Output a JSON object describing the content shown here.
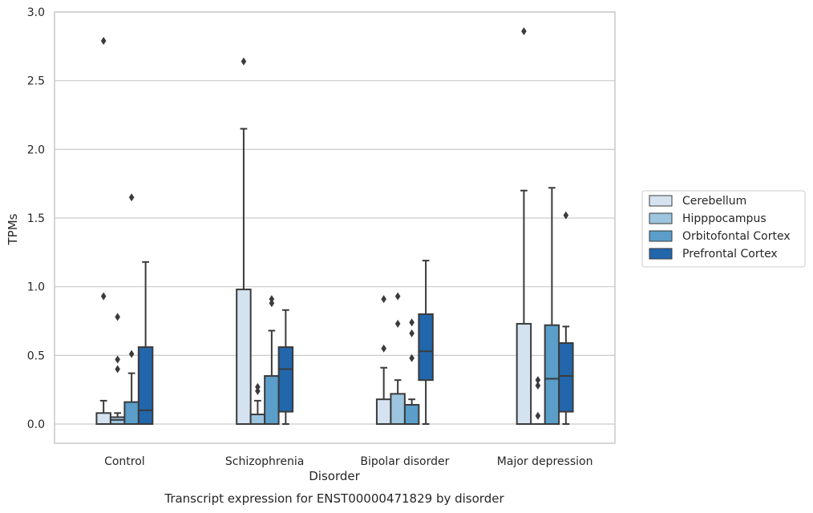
{
  "chart_data": {
    "type": "box",
    "caption": "Transcript expression for ENST00000471829 by disorder",
    "xlabel": "Disorder",
    "ylabel": "TPMs",
    "ylim": [
      -0.14,
      3.0
    ],
    "yticks": [
      0.0,
      0.5,
      1.0,
      1.5,
      2.0,
      2.5,
      3.0
    ],
    "ytick_labels": [
      "0.0",
      "0.5",
      "1.0",
      "1.5",
      "2.0",
      "2.5",
      "3.0"
    ],
    "grid": "horizontal",
    "legend_position": "right",
    "categories": [
      "Control",
      "Schizophrenia",
      "Bipolar disorder",
      "Major depression"
    ],
    "series": [
      {
        "name": "Cerebellum",
        "color": "#d5e3f1",
        "boxes": [
          {
            "q1": 0.0,
            "median": 0.0,
            "q3": 0.08,
            "whislo": 0.0,
            "whishi": 0.17,
            "fliers": [
              0.93,
              2.79
            ]
          },
          {
            "q1": 0.0,
            "median": 0.0,
            "q3": 0.98,
            "whislo": 0.0,
            "whishi": 2.15,
            "fliers": [
              2.64
            ]
          },
          {
            "q1": 0.0,
            "median": 0.0,
            "q3": 0.18,
            "whislo": 0.0,
            "whishi": 0.41,
            "fliers": [
              0.55,
              0.91
            ]
          },
          {
            "q1": 0.0,
            "median": 0.0,
            "q3": 0.73,
            "whislo": 0.0,
            "whishi": 1.7,
            "fliers": [
              2.86
            ]
          }
        ]
      },
      {
        "name": "Hipppocampus",
        "color": "#9dc5df",
        "boxes": [
          {
            "q1": 0.0,
            "median": 0.03,
            "q3": 0.05,
            "whislo": 0.0,
            "whishi": 0.08,
            "fliers": [
              0.4,
              0.47,
              0.78
            ]
          },
          {
            "q1": 0.0,
            "median": 0.0,
            "q3": 0.07,
            "whislo": 0.0,
            "whishi": 0.17,
            "fliers": [
              0.24,
              0.27
            ]
          },
          {
            "q1": 0.0,
            "median": 0.0,
            "q3": 0.22,
            "whislo": 0.0,
            "whishi": 0.32,
            "fliers": [
              0.73,
              0.93
            ]
          },
          {
            "q1": 0.0,
            "median": 0.0,
            "q3": 0.0,
            "whislo": 0.0,
            "whishi": 0.0,
            "fliers": [
              0.06,
              0.28,
              0.32
            ]
          }
        ]
      },
      {
        "name": "Orbitofontal Cortex",
        "color": "#5a9ec9",
        "boxes": [
          {
            "q1": 0.0,
            "median": 0.0,
            "q3": 0.16,
            "whislo": 0.0,
            "whishi": 0.37,
            "fliers": [
              0.51,
              1.65
            ]
          },
          {
            "q1": 0.0,
            "median": 0.0,
            "q3": 0.35,
            "whislo": 0.0,
            "whishi": 0.68,
            "fliers": [
              0.88,
              0.91
            ]
          },
          {
            "q1": 0.0,
            "median": 0.0,
            "q3": 0.14,
            "whislo": 0.0,
            "whishi": 0.18,
            "fliers": [
              0.48,
              0.66,
              0.74
            ]
          },
          {
            "q1": 0.0,
            "median": 0.33,
            "q3": 0.72,
            "whislo": 0.0,
            "whishi": 1.72,
            "fliers": []
          }
        ]
      },
      {
        "name": "Prefrontal Cortex",
        "color": "#2266ac",
        "boxes": [
          {
            "q1": 0.0,
            "median": 0.1,
            "q3": 0.56,
            "whislo": 0.0,
            "whishi": 1.18,
            "fliers": []
          },
          {
            "q1": 0.09,
            "median": 0.4,
            "q3": 0.56,
            "whislo": 0.0,
            "whishi": 0.83,
            "fliers": []
          },
          {
            "q1": 0.32,
            "median": 0.53,
            "q3": 0.8,
            "whislo": 0.0,
            "whishi": 1.19,
            "fliers": []
          },
          {
            "q1": 0.09,
            "median": 0.35,
            "q3": 0.59,
            "whislo": 0.0,
            "whishi": 0.71,
            "fliers": [
              1.52
            ]
          }
        ]
      }
    ]
  }
}
